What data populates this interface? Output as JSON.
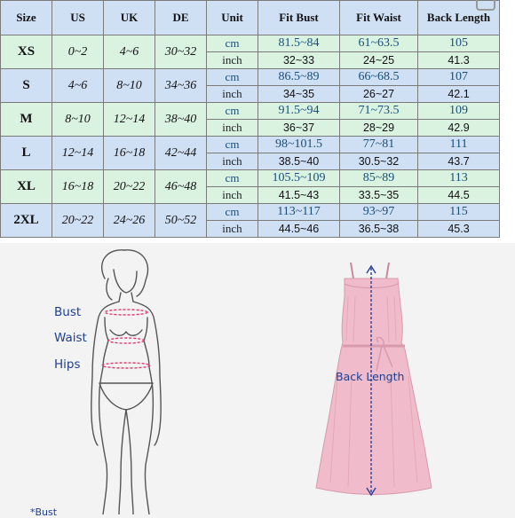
{
  "headers": [
    "Size",
    "US",
    "UK",
    "DE",
    "Unit",
    "Fit Bust",
    "Fit Waist",
    "Back Length"
  ],
  "rows": [
    {
      "size": "XS",
      "us": "0~2",
      "uk": "4~6",
      "de": "30~32",
      "cm": {
        "unit": "cm",
        "bust": "81.5~84",
        "waist": "61~63.5",
        "back": "105"
      },
      "inch": {
        "unit": "inch",
        "bust": "32~33",
        "waist": "24~25",
        "back": "41.3"
      }
    },
    {
      "size": "S",
      "us": "4~6",
      "uk": "8~10",
      "de": "34~36",
      "cm": {
        "unit": "cm",
        "bust": "86.5~89",
        "waist": "66~68.5",
        "back": "107"
      },
      "inch": {
        "unit": "inch",
        "bust": "34~35",
        "waist": "26~27",
        "back": "42.1"
      }
    },
    {
      "size": "M",
      "us": "8~10",
      "uk": "12~14",
      "de": "38~40",
      "cm": {
        "unit": "cm",
        "bust": "91.5~94",
        "waist": "71~73.5",
        "back": "109"
      },
      "inch": {
        "unit": "inch",
        "bust": "36~37",
        "waist": "28~29",
        "back": "42.9"
      }
    },
    {
      "size": "L",
      "us": "12~14",
      "uk": "16~18",
      "de": "42~44",
      "cm": {
        "unit": "cm",
        "bust": "98~101.5",
        "waist": "77~81",
        "back": "111"
      },
      "inch": {
        "unit": "inch",
        "bust": "38.5~40",
        "waist": "30.5~32",
        "back": "43.7"
      }
    },
    {
      "size": "XL",
      "us": "16~18",
      "uk": "20~22",
      "de": "46~48",
      "cm": {
        "unit": "cm",
        "bust": "105.5~109",
        "waist": "85~89",
        "back": "113"
      },
      "inch": {
        "unit": "inch",
        "bust": "41.5~43",
        "waist": "33.5~35",
        "back": "44.5"
      }
    },
    {
      "size": "2XL",
      "us": "20~22",
      "uk": "24~26",
      "de": "50~52",
      "cm": {
        "unit": "cm",
        "bust": "113~117",
        "waist": "93~97",
        "back": "115"
      },
      "inch": {
        "unit": "inch",
        "bust": "44.5~46",
        "waist": "36.5~38",
        "back": "45.3"
      }
    }
  ],
  "body_labels": {
    "bust": "Bust",
    "waist": "Waist",
    "hips": "Hips"
  },
  "dress_label": "Back Length",
  "footnote": "*Bust",
  "colors": {
    "blue_row": "#cfe0f5",
    "green_row": "#d9f3e0",
    "label_text": "#1d3f8f",
    "measure_line": "#e23a6e",
    "dress_pink": "#f0bccb"
  }
}
